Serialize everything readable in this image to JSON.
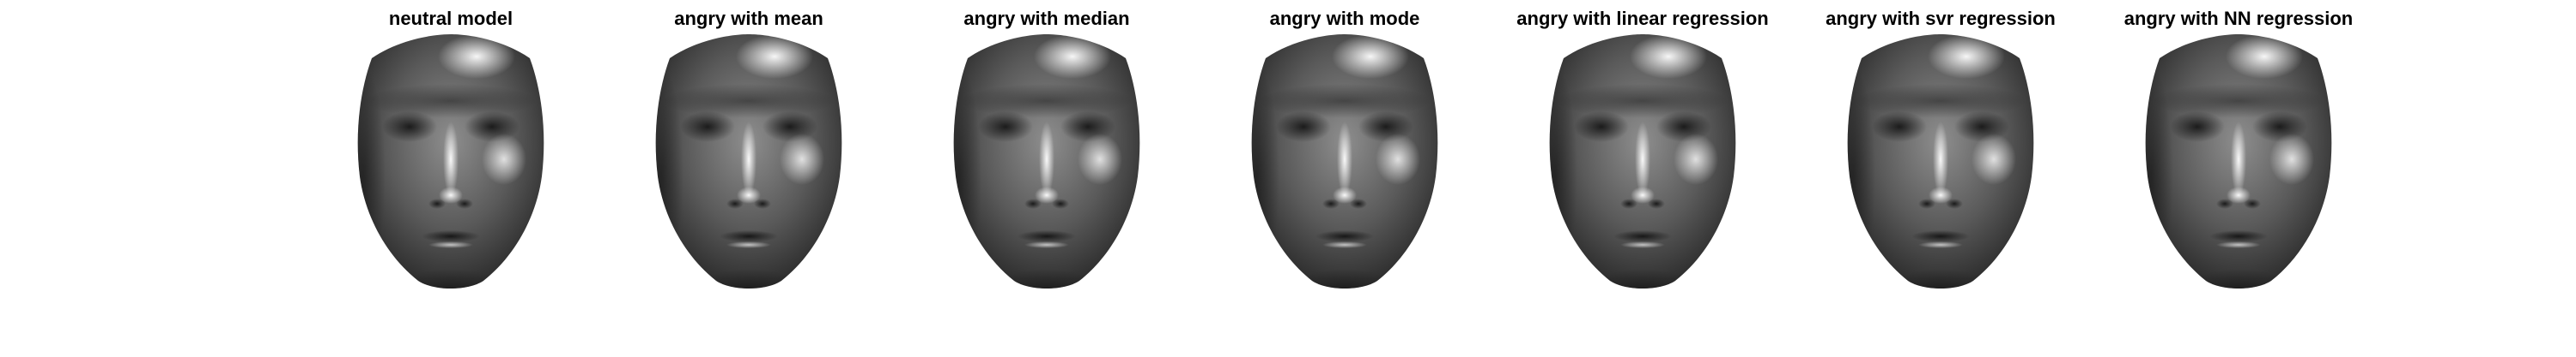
{
  "figure": {
    "panels": [
      {
        "title": "neutral model"
      },
      {
        "title": "angry with mean"
      },
      {
        "title": "angry with median"
      },
      {
        "title": "angry with mode"
      },
      {
        "title": "angry with linear regression"
      },
      {
        "title": "angry with svr regression"
      },
      {
        "title": "angry with NN regression"
      }
    ]
  }
}
